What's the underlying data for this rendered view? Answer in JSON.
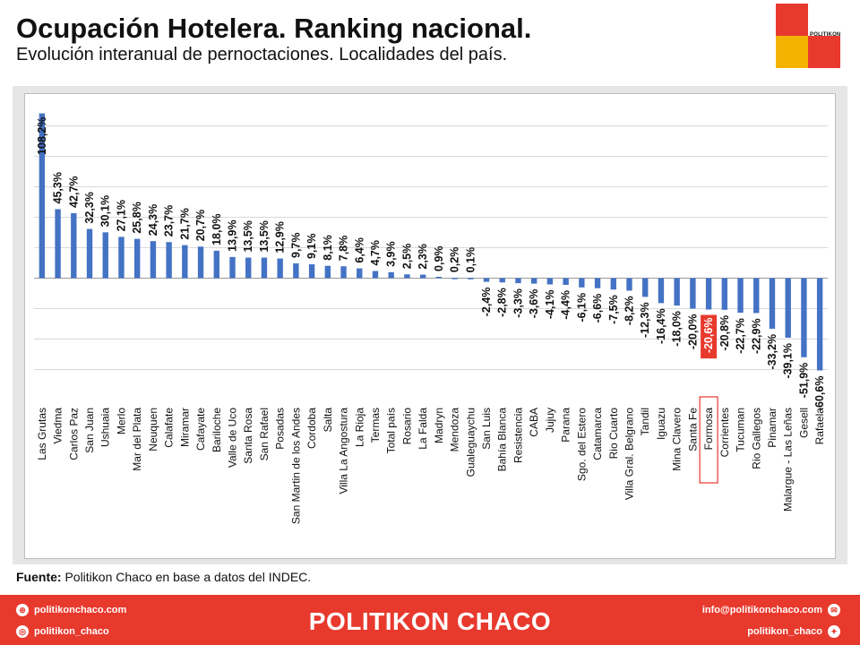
{
  "header": {
    "title": "Ocupación Hotelera. Ranking nacional.",
    "subtitle": "Evolución interanual de pernoctaciones. Localidades del país."
  },
  "logo": {
    "text": "POLITIKON",
    "colors": [
      "#e8392d",
      "#f5b301"
    ]
  },
  "source": {
    "label": "Fuente:",
    "text": " Politikon Chaco en base a datos del INDEC."
  },
  "footer": {
    "web": "politikonchaco.com",
    "instagram": "politikon_chaco",
    "brand": "POLITIKON CHACO",
    "email": "info@politikonchaco.com",
    "twitter": "politikon_chaco",
    "background": "#e8392d",
    "icons": [
      "globe-icon",
      "instagram-icon",
      "email-icon",
      "twitter-icon"
    ]
  },
  "chart_data": {
    "type": "bar",
    "bar_color": "#4472c4",
    "highlight_color": "#e8392d",
    "highlight_category": "Formosa",
    "grid": true,
    "ylim": [
      -65,
      115
    ],
    "categories": [
      "Las Grutas",
      "Viedma",
      "Carlos Paz",
      "San Juan",
      "Ushuaia",
      "Merlo",
      "Mar del Plata",
      "Neuquen",
      "Calafate",
      "Miramar",
      "Cafayate",
      "Bariloche",
      "Valle de Uco",
      "Santa Rosa",
      "San Rafael",
      "Posadas",
      "San Martin de los Andes",
      "Cordoba",
      "Salta",
      "Villa La Angostura",
      "La Rioja",
      "Termas",
      "Total país",
      "Rosario",
      "La Falda",
      "Madryn",
      "Mendoza",
      "Gualeguaychu",
      "San Luis",
      "Bahía Blanca",
      "Resistencia",
      "CABA",
      "Jujuy",
      "Parana",
      "Sgo. del Estero",
      "Catamarca",
      "Rio Cuarto",
      "Villa Gral. Belgrano",
      "Tandil",
      "Iguazu",
      "Mina Clavero",
      "Santa Fe",
      "Formosa",
      "Corrientes",
      "Tucuman",
      "Rio Gallegos",
      "Pinamar",
      "Malargue - Las Leñas",
      "Gesell",
      "Rafaela"
    ],
    "values": [
      108.2,
      45.3,
      42.7,
      32.3,
      30.1,
      27.1,
      25.8,
      24.3,
      23.7,
      21.7,
      20.7,
      18.0,
      13.9,
      13.5,
      13.5,
      12.9,
      9.7,
      9.1,
      8.1,
      7.8,
      6.4,
      4.7,
      3.9,
      2.5,
      2.3,
      0.9,
      0.2,
      0.1,
      -2.4,
      -2.8,
      -3.3,
      -3.6,
      -4.1,
      -4.4,
      -6.1,
      -6.6,
      -7.5,
      -8.2,
      -12.3,
      -16.4,
      -18.0,
      -20.0,
      -20.6,
      -20.8,
      -22.7,
      -22.9,
      -33.2,
      -39.1,
      -51.9,
      -60.6
    ],
    "labels": [
      "108,2%",
      "45,3%",
      "42,7%",
      "32,3%",
      "30,1%",
      "27,1%",
      "25,8%",
      "24,3%",
      "23,7%",
      "21,7%",
      "20,7%",
      "18,0%",
      "13,9%",
      "13,5%",
      "13,5%",
      "12,9%",
      "9,7%",
      "9,1%",
      "8,1%",
      "7,8%",
      "6,4%",
      "4,7%",
      "3,9%",
      "2,5%",
      "2,3%",
      "0,9%",
      "0,2%",
      "0,1%",
      "-2,4%",
      "-2,8%",
      "-3,3%",
      "-3,6%",
      "-4,1%",
      "-4,4%",
      "-6,1%",
      "-6,6%",
      "-7,5%",
      "-8,2%",
      "-12,3%",
      "-16,4%",
      "-18,0%",
      "-20,0%",
      "-20,6%",
      "-20,8%",
      "-22,7%",
      "-22,9%",
      "-33,2%",
      "-39,1%",
      "-51,9%",
      "-60,6%"
    ]
  }
}
